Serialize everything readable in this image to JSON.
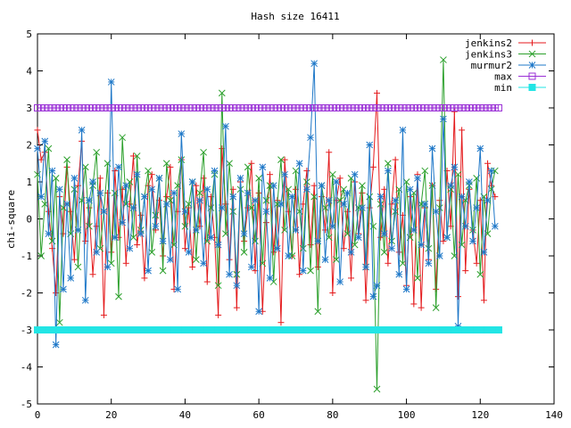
{
  "chart_data": {
    "type": "line",
    "title": "Hash size 16411",
    "xlabel": "",
    "ylabel": "chi-square",
    "xlim": [
      0,
      140
    ],
    "ylim": [
      -5,
      5
    ],
    "xticks": [
      0,
      20,
      40,
      60,
      80,
      100,
      120,
      140
    ],
    "yticks": [
      -5,
      -4,
      -3,
      -2,
      -1,
      0,
      1,
      2,
      3,
      4,
      5
    ],
    "grid": false,
    "legend_position": "top-right",
    "series": [
      {
        "name": "jenkins2",
        "color": "#e41a1c",
        "marker": "plus",
        "x_start": 0,
        "values": [
          2.4,
          1.6,
          1.8,
          0.2,
          -0.8,
          -2.0,
          0.6,
          -0.4,
          1.4,
          0.2,
          -1.1,
          0.9,
          2.1,
          -0.6,
          0.3,
          -1.5,
          -0.2,
          1.1,
          -2.6,
          0.7,
          -0.9,
          1.3,
          -0.5,
          0.8,
          -1.2,
          0.4,
          1.7,
          -0.7,
          0.1,
          -1.6,
          0.9,
          1.2,
          -0.3,
          0.5,
          -1.0,
          0.6,
          1.4,
          -1.9,
          0.2,
          1.6,
          -0.8,
          0.3,
          -1.3,
          0.9,
          -0.2,
          1.1,
          -1.7,
          0.6,
          -0.5,
          -2.6,
          1.9,
          0.4,
          -1.1,
          0.8,
          -2.4,
          1.0,
          -0.6,
          0.3,
          1.5,
          -1.4,
          0.7,
          -2.5,
          -0.1,
          1.2,
          -0.9,
          0.5,
          -2.8,
          1.6,
          0.2,
          -1.0,
          0.8,
          -1.5,
          0.4,
          1.3,
          -0.7,
          0.9,
          -1.3,
          0.6,
          -0.3,
          1.8,
          -2.0,
          0.5,
          1.1,
          -0.8,
          0.2,
          -1.6,
          1.0,
          -0.4,
          0.7,
          -2.2,
          0.3,
          1.4,
          3.4,
          -0.5,
          0.8,
          -1.2,
          0.4,
          1.6,
          -0.9,
          0.1,
          -1.8,
          0.6,
          -2.3,
          1.2,
          -2.4,
          0.3,
          -1.1,
          0.9,
          -1.9,
          0.5,
          -0.6,
          1.3,
          -0.2,
          2.9,
          -2.1,
          2.4,
          -1.4,
          0.8,
          -0.3,
          -1.2,
          0.5,
          -2.2,
          1.5,
          0.9,
          0.6
        ]
      },
      {
        "name": "jenkins3",
        "color": "#2ca02c",
        "marker": "cross",
        "x_start": 0,
        "values": [
          1.2,
          -1.0,
          0.4,
          1.9,
          -0.6,
          1.1,
          -2.8,
          0.3,
          1.6,
          -0.4,
          0.8,
          -1.3,
          0.5,
          1.4,
          -0.2,
          0.9,
          1.8,
          -0.8,
          0.2,
          1.5,
          -1.2,
          0.7,
          -2.1,
          2.2,
          0.4,
          1.0,
          -0.5,
          1.7,
          -0.3,
          0.6,
          1.3,
          -0.9,
          0.1,
          1.1,
          -1.4,
          1.5,
          0.5,
          -0.7,
          0.9,
          1.6,
          -0.2,
          0.4,
          1.0,
          -1.1,
          0.7,
          1.8,
          -0.6,
          0.3,
          1.2,
          -1.8,
          3.4,
          -0.4,
          1.5,
          0.2,
          -1.5,
          0.8,
          -0.9,
          1.4,
          0.3,
          -0.6,
          1.1,
          -1.2,
          0.5,
          0.9,
          -1.7,
          0.4,
          1.6,
          -0.3,
          0.8,
          -1.0,
          1.3,
          0.2,
          -0.8,
          1.0,
          -1.4,
          0.6,
          -2.5,
          0.9,
          0.3,
          -0.5,
          1.2,
          -1.1,
          0.5,
          0.8,
          -0.4,
          1.1,
          -0.7,
          0.3,
          0.9,
          -1.3,
          0.6,
          -0.2,
          -4.6,
          0.4,
          -0.9,
          1.5,
          -0.6,
          0.2,
          0.8,
          -1.2,
          1.0,
          -0.5,
          0.7,
          -1.6,
          0.4,
          1.3,
          -0.8,
          0.9,
          -2.4,
          0.3,
          4.3,
          -0.5,
          0.8,
          -1.0,
          1.2,
          -0.7,
          0.5,
          0.9,
          -0.3,
          1.1,
          -1.5,
          0.6,
          -0.4,
          0.8,
          1.3
        ]
      },
      {
        "name": "murmur2",
        "color": "#1f78c8",
        "marker": "star",
        "x_start": 0,
        "values": [
          1.9,
          0.6,
          2.1,
          -0.4,
          1.3,
          -3.4,
          0.8,
          -1.9,
          0.4,
          -1.6,
          1.1,
          -0.3,
          2.4,
          -2.2,
          0.5,
          1.0,
          -0.9,
          0.7,
          0.2,
          -1.3,
          3.7,
          -0.5,
          1.4,
          -0.1,
          0.9,
          -0.8,
          0.3,
          1.2,
          -0.4,
          0.6,
          -1.4,
          0.8,
          -0.2,
          1.1,
          -0.6,
          0.4,
          -1.1,
          0.7,
          -1.9,
          2.3,
          0.2,
          -0.9,
          1.0,
          -0.3,
          0.5,
          -1.2,
          0.8,
          -0.5,
          1.3,
          -0.7,
          0.3,
          2.5,
          -1.5,
          0.6,
          -1.8,
          1.1,
          -0.4,
          0.7,
          -1.3,
          0.5,
          -2.5,
          1.4,
          0.2,
          -1.6,
          0.9,
          -0.8,
          0.4,
          1.2,
          -1.0,
          0.6,
          -0.3,
          1.5,
          -1.4,
          0.8,
          2.2,
          4.2,
          -0.6,
          0.9,
          -1.1,
          0.5,
          -0.2,
          1.0,
          -1.7,
          0.4,
          0.7,
          -0.9,
          1.2,
          -0.5,
          0.3,
          -1.3,
          2.0,
          -2.1,
          -1.8,
          0.6,
          -0.4,
          1.3,
          -0.8,
          0.5,
          -1.5,
          2.4,
          -1.9,
          0.8,
          -0.3,
          1.1,
          -0.7,
          0.4,
          -1.2,
          1.9,
          0.2,
          -1.0,
          2.7,
          -0.5,
          0.9,
          1.4,
          -2.9,
          0.6,
          -0.2,
          1.0,
          -0.6,
          0.3,
          1.9,
          -0.9,
          0.5,
          1.3,
          -0.2
        ]
      },
      {
        "name": "max",
        "color": "#9a2fd6",
        "marker": "open-square",
        "x_start": 0,
        "constant": 3.0,
        "count": 126
      },
      {
        "name": "min",
        "color": "#22e5e5",
        "marker": "filled-square",
        "x_start": 0,
        "constant": -3.0,
        "count": 126
      }
    ]
  }
}
